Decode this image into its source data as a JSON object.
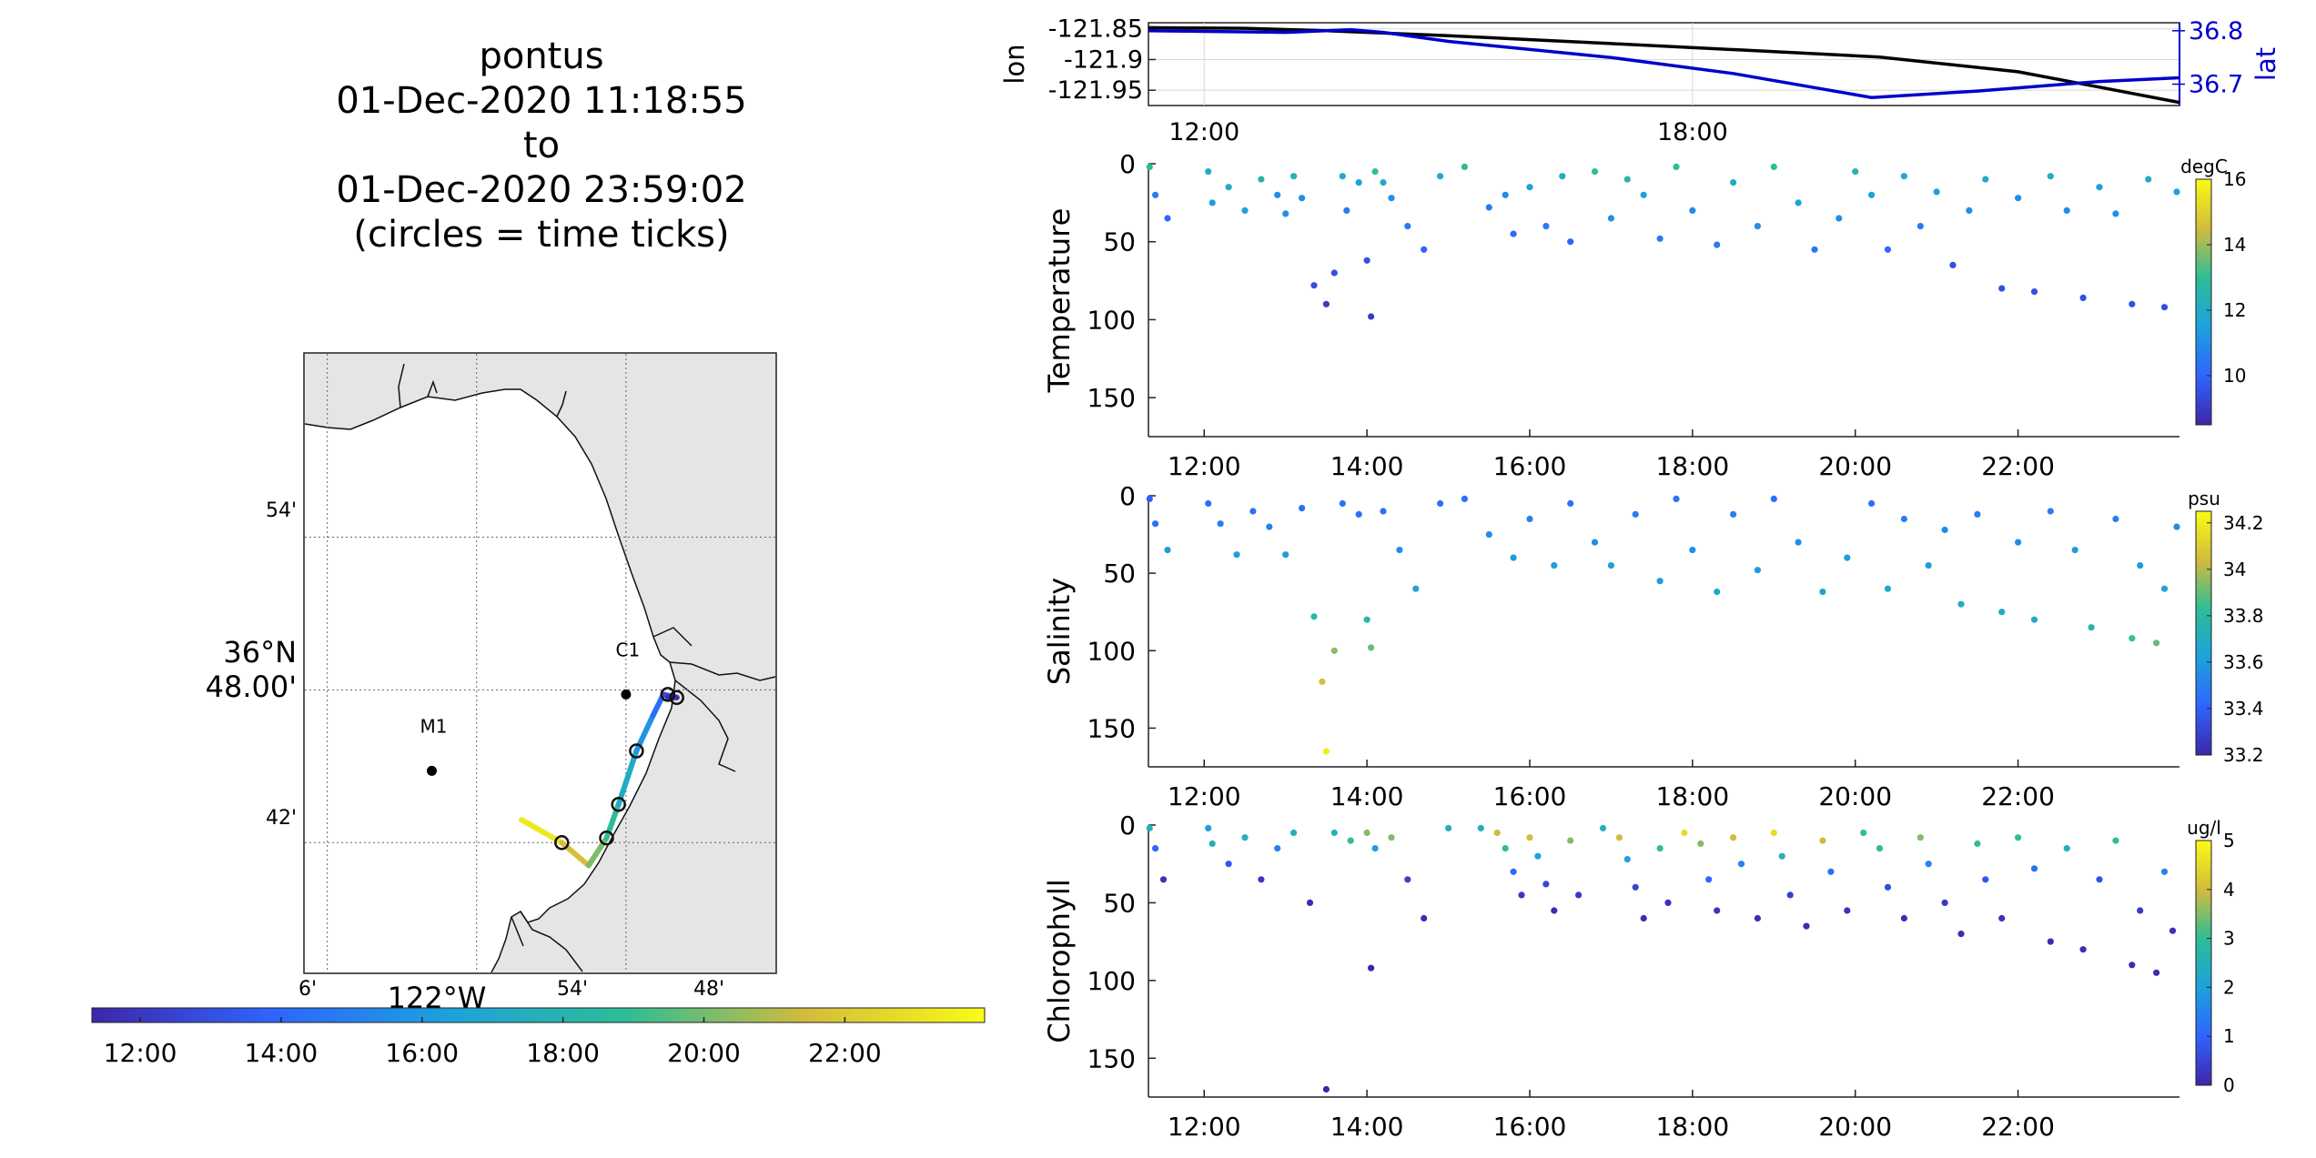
{
  "title_block": {
    "line1": "pontus",
    "line2": "01-Dec-2020 11:18:55",
    "line3": "to",
    "line4": "01-Dec-2020 23:59:02",
    "line5": "(circles = time ticks)"
  },
  "colors": {
    "lon_line": "#000000",
    "lat_line": "#0000cc",
    "coast": "#000000",
    "land": "#e5e5e5"
  },
  "chart_data": [
    {
      "type": "line",
      "id": "lonlat",
      "ylabel": "lon",
      "ylabel_right": "lat",
      "x_tick_labels": [
        "12:00",
        "18:00"
      ],
      "x_ticks_hours": [
        12,
        18
      ],
      "xlim_hours": [
        11.315,
        23.984
      ],
      "ylim_left": [
        -121.975,
        -121.84
      ],
      "ylim_right": [
        36.66,
        36.815
      ],
      "yticks_left": [
        -121.85,
        -121.9,
        -121.95
      ],
      "yticks_left_labels": [
        "-121.85",
        "-121.9",
        "-121.95"
      ],
      "yticks_right": [
        36.8,
        36.7
      ],
      "yticks_right_labels": [
        "36.8",
        "36.7"
      ],
      "grid": true,
      "series": [
        {
          "axis": "left",
          "x": [
            11.315,
            12.5,
            13.5,
            15.0,
            17.0,
            19.0,
            20.3,
            22.0,
            23.0,
            23.984
          ],
          "values": [
            -121.848,
            -121.849,
            -121.853,
            -121.861,
            -121.874,
            -121.887,
            -121.896,
            -121.92,
            -121.945,
            -121.97
          ]
        },
        {
          "axis": "right",
          "x": [
            11.315,
            13.0,
            13.5,
            13.8,
            14.2,
            15.0,
            17.0,
            18.5,
            20.2,
            21.5,
            23.0,
            23.984
          ],
          "values": [
            36.8,
            36.797,
            36.8,
            36.802,
            36.797,
            36.78,
            36.75,
            36.72,
            36.675,
            36.687,
            36.705,
            36.712
          ]
        }
      ]
    },
    {
      "type": "scatter",
      "id": "temperature",
      "ylabel": "Temperature",
      "units": "degC",
      "x_tick_labels": [
        "12:00",
        "14:00",
        "16:00",
        "18:00",
        "20:00",
        "22:00"
      ],
      "x_ticks_hours": [
        12,
        14,
        16,
        18,
        20,
        22
      ],
      "xlim_hours": [
        11.315,
        23.984
      ],
      "ylim": [
        175,
        0
      ],
      "yticks": [
        0,
        50,
        100,
        150
      ],
      "colorbar_range": [
        8.5,
        16
      ],
      "colorbar_ticks": [
        10,
        12,
        14,
        16
      ],
      "points": [
        [
          11.33,
          2,
          13
        ],
        [
          11.4,
          20,
          10.5
        ],
        [
          11.55,
          35,
          10
        ],
        [
          12.05,
          5,
          12
        ],
        [
          12.1,
          25,
          11.5
        ],
        [
          12.3,
          15,
          12
        ],
        [
          12.5,
          30,
          11.5
        ],
        [
          12.7,
          10,
          12.5
        ],
        [
          12.9,
          20,
          11
        ],
        [
          13.0,
          32,
          11
        ],
        [
          13.1,
          8,
          12.5
        ],
        [
          13.2,
          22,
          11
        ],
        [
          13.35,
          78,
          9.5
        ],
        [
          13.5,
          90,
          9
        ],
        [
          13.6,
          70,
          9.5
        ],
        [
          13.7,
          8,
          12
        ],
        [
          13.75,
          30,
          10.5
        ],
        [
          13.9,
          12,
          11.5
        ],
        [
          14.0,
          62,
          9.5
        ],
        [
          14.05,
          98,
          9
        ],
        [
          14.1,
          5,
          13
        ],
        [
          14.2,
          12,
          12
        ],
        [
          14.3,
          22,
          11
        ],
        [
          14.5,
          40,
          10.5
        ],
        [
          14.7,
          55,
          10
        ],
        [
          14.9,
          8,
          12
        ],
        [
          15.2,
          2,
          13
        ],
        [
          15.5,
          28,
          10.5
        ],
        [
          15.7,
          20,
          11
        ],
        [
          15.8,
          45,
          10
        ],
        [
          16.0,
          15,
          11.5
        ],
        [
          16.2,
          40,
          10.5
        ],
        [
          16.4,
          8,
          12
        ],
        [
          16.5,
          50,
          10
        ],
        [
          16.8,
          5,
          13
        ],
        [
          17.0,
          35,
          11
        ],
        [
          17.2,
          10,
          12.5
        ],
        [
          17.4,
          20,
          11.5
        ],
        [
          17.6,
          48,
          10.5
        ],
        [
          17.8,
          2,
          13
        ],
        [
          18.0,
          30,
          11
        ],
        [
          18.3,
          52,
          10.5
        ],
        [
          18.5,
          12,
          12
        ],
        [
          18.8,
          40,
          11
        ],
        [
          19.0,
          2,
          13
        ],
        [
          19.3,
          25,
          11.5
        ],
        [
          19.5,
          55,
          10.5
        ],
        [
          19.8,
          35,
          11
        ],
        [
          20.0,
          5,
          12.5
        ],
        [
          20.2,
          20,
          11.5
        ],
        [
          20.4,
          55,
          10
        ],
        [
          20.6,
          8,
          12
        ],
        [
          20.8,
          40,
          10.5
        ],
        [
          21.0,
          18,
          11.5
        ],
        [
          21.2,
          65,
          9.5
        ],
        [
          21.4,
          30,
          11
        ],
        [
          21.6,
          10,
          12
        ],
        [
          21.8,
          80,
          9.5
        ],
        [
          22.0,
          22,
          11
        ],
        [
          22.2,
          82,
          9.5
        ],
        [
          22.4,
          8,
          12
        ],
        [
          22.6,
          30,
          11
        ],
        [
          22.8,
          86,
          9.5
        ],
        [
          23.0,
          15,
          11.5
        ],
        [
          23.2,
          32,
          11
        ],
        [
          23.4,
          90,
          9.5
        ],
        [
          23.6,
          10,
          12
        ],
        [
          23.8,
          92,
          9.5
        ],
        [
          23.95,
          18,
          11.5
        ]
      ]
    },
    {
      "type": "scatter",
      "id": "salinity",
      "ylabel": "Salinity",
      "units": "psu",
      "x_tick_labels": [
        "12:00",
        "14:00",
        "16:00",
        "18:00",
        "20:00",
        "22:00"
      ],
      "x_ticks_hours": [
        12,
        14,
        16,
        18,
        20,
        22
      ],
      "xlim_hours": [
        11.315,
        23.984
      ],
      "ylim": [
        175,
        0
      ],
      "yticks": [
        0,
        50,
        100,
        150
      ],
      "colorbar_range": [
        33.2,
        34.25
      ],
      "colorbar_ticks": [
        33.2,
        33.4,
        33.6,
        33.8,
        34,
        34.2
      ],
      "points": [
        [
          11.33,
          2,
          33.4
        ],
        [
          11.4,
          18,
          33.45
        ],
        [
          11.55,
          35,
          33.6
        ],
        [
          12.05,
          5,
          33.45
        ],
        [
          12.2,
          18,
          33.5
        ],
        [
          12.4,
          38,
          33.6
        ],
        [
          12.6,
          10,
          33.45
        ],
        [
          12.8,
          20,
          33.5
        ],
        [
          13.0,
          38,
          33.6
        ],
        [
          13.2,
          8,
          33.45
        ],
        [
          13.35,
          78,
          33.8
        ],
        [
          13.45,
          120,
          34.05
        ],
        [
          13.5,
          165,
          34.2
        ],
        [
          13.6,
          100,
          33.95
        ],
        [
          13.7,
          5,
          33.45
        ],
        [
          13.9,
          12,
          33.45
        ],
        [
          14.0,
          80,
          33.8
        ],
        [
          14.05,
          98,
          33.9
        ],
        [
          14.2,
          10,
          33.45
        ],
        [
          14.4,
          35,
          33.55
        ],
        [
          14.6,
          60,
          33.65
        ],
        [
          14.9,
          5,
          33.45
        ],
        [
          15.2,
          2,
          33.45
        ],
        [
          15.5,
          25,
          33.55
        ],
        [
          15.8,
          40,
          33.6
        ],
        [
          16.0,
          15,
          33.5
        ],
        [
          16.3,
          45,
          33.6
        ],
        [
          16.5,
          5,
          33.45
        ],
        [
          16.8,
          30,
          33.55
        ],
        [
          17.0,
          45,
          33.6
        ],
        [
          17.3,
          12,
          33.5
        ],
        [
          17.6,
          55,
          33.6
        ],
        [
          17.8,
          2,
          33.45
        ],
        [
          18.0,
          35,
          33.55
        ],
        [
          18.3,
          62,
          33.65
        ],
        [
          18.5,
          12,
          33.5
        ],
        [
          18.8,
          48,
          33.6
        ],
        [
          19.0,
          2,
          33.45
        ],
        [
          19.3,
          30,
          33.55
        ],
        [
          19.6,
          62,
          33.65
        ],
        [
          19.9,
          40,
          33.6
        ],
        [
          20.2,
          5,
          33.45
        ],
        [
          20.4,
          60,
          33.65
        ],
        [
          20.6,
          15,
          33.5
        ],
        [
          20.9,
          45,
          33.6
        ],
        [
          21.1,
          22,
          33.55
        ],
        [
          21.3,
          70,
          33.7
        ],
        [
          21.5,
          12,
          33.5
        ],
        [
          21.8,
          75,
          33.7
        ],
        [
          22.0,
          30,
          33.55
        ],
        [
          22.2,
          80,
          33.7
        ],
        [
          22.4,
          10,
          33.5
        ],
        [
          22.7,
          35,
          33.6
        ],
        [
          22.9,
          85,
          33.75
        ],
        [
          23.2,
          15,
          33.5
        ],
        [
          23.4,
          92,
          33.85
        ],
        [
          23.5,
          45,
          33.6
        ],
        [
          23.7,
          95,
          33.9
        ],
        [
          23.8,
          60,
          33.65
        ],
        [
          23.95,
          20,
          33.55
        ]
      ]
    },
    {
      "type": "scatter",
      "id": "chlorophyll",
      "ylabel": "Chlorophyll",
      "units": "ug/l",
      "x_tick_labels": [
        "12:00",
        "14:00",
        "16:00",
        "18:00",
        "20:00",
        "22:00"
      ],
      "x_ticks_hours": [
        12,
        14,
        16,
        18,
        20,
        22
      ],
      "xlim_hours": [
        11.315,
        23.984
      ],
      "ylim": [
        175,
        0
      ],
      "yticks": [
        0,
        50,
        100,
        150
      ],
      "colorbar_range": [
        0,
        5
      ],
      "colorbar_ticks": [
        0,
        1,
        2,
        3,
        4,
        5
      ],
      "points": [
        [
          11.33,
          2,
          2.5
        ],
        [
          11.4,
          15,
          1
        ],
        [
          11.5,
          35,
          0.2
        ],
        [
          12.05,
          2,
          2
        ],
        [
          12.1,
          12,
          2.5
        ],
        [
          12.3,
          25,
          0.8
        ],
        [
          12.5,
          8,
          2.5
        ],
        [
          12.7,
          35,
          0.3
        ],
        [
          12.9,
          15,
          1.5
        ],
        [
          13.1,
          5,
          2.5
        ],
        [
          13.3,
          50,
          0.1
        ],
        [
          13.5,
          170,
          0
        ],
        [
          13.6,
          5,
          2.5
        ],
        [
          13.8,
          10,
          3
        ],
        [
          14.0,
          5,
          3.5
        ],
        [
          14.05,
          92,
          0
        ],
        [
          14.1,
          15,
          2
        ],
        [
          14.3,
          8,
          3.5
        ],
        [
          14.5,
          35,
          0.4
        ],
        [
          14.7,
          60,
          0.1
        ],
        [
          15.0,
          2,
          2.5
        ],
        [
          15.4,
          2,
          2.5
        ],
        [
          15.6,
          5,
          4
        ],
        [
          15.7,
          15,
          3
        ],
        [
          15.8,
          30,
          1
        ],
        [
          15.9,
          45,
          0.3
        ],
        [
          16.0,
          8,
          4
        ],
        [
          16.1,
          20,
          2
        ],
        [
          16.2,
          38,
          0.5
        ],
        [
          16.3,
          55,
          0.1
        ],
        [
          16.5,
          10,
          3.5
        ],
        [
          16.6,
          45,
          0.3
        ],
        [
          16.9,
          2,
          2.5
        ],
        [
          17.1,
          8,
          4
        ],
        [
          17.2,
          22,
          2
        ],
        [
          17.3,
          40,
          0.5
        ],
        [
          17.4,
          60,
          0.1
        ],
        [
          17.6,
          15,
          3
        ],
        [
          17.7,
          50,
          0.2
        ],
        [
          17.9,
          5,
          4.5
        ],
        [
          18.1,
          12,
          3.5
        ],
        [
          18.2,
          35,
          1
        ],
        [
          18.3,
          55,
          0.2
        ],
        [
          18.5,
          8,
          4
        ],
        [
          18.6,
          25,
          1.5
        ],
        [
          18.8,
          60,
          0.1
        ],
        [
          19.0,
          5,
          4.5
        ],
        [
          19.1,
          20,
          2.5
        ],
        [
          19.2,
          45,
          0.4
        ],
        [
          19.4,
          65,
          0.1
        ],
        [
          19.6,
          10,
          4
        ],
        [
          19.7,
          30,
          1.2
        ],
        [
          19.9,
          55,
          0.2
        ],
        [
          20.1,
          5,
          3
        ],
        [
          20.3,
          15,
          3
        ],
        [
          20.4,
          40,
          0.6
        ],
        [
          20.6,
          60,
          0.1
        ],
        [
          20.8,
          8,
          3.5
        ],
        [
          20.9,
          25,
          1.5
        ],
        [
          21.1,
          50,
          0.3
        ],
        [
          21.3,
          70,
          0.1
        ],
        [
          21.5,
          12,
          3
        ],
        [
          21.6,
          35,
          0.8
        ],
        [
          21.8,
          60,
          0.2
        ],
        [
          22.0,
          8,
          3
        ],
        [
          22.2,
          28,
          1.2
        ],
        [
          22.4,
          75,
          0.1
        ],
        [
          22.6,
          15,
          2.5
        ],
        [
          22.8,
          80,
          0.1
        ],
        [
          23.0,
          35,
          0.7
        ],
        [
          23.2,
          10,
          3
        ],
        [
          23.4,
          90,
          0.1
        ],
        [
          23.5,
          55,
          0.3
        ],
        [
          23.7,
          95,
          0.1
        ],
        [
          23.8,
          30,
          1.5
        ],
        [
          23.9,
          68,
          0.2
        ]
      ]
    },
    {
      "type": "scatter",
      "id": "map",
      "title": "",
      "lat_tick_labels": [
        "54'",
        "36°N 48.00'",
        "42'"
      ],
      "lon_tick_labels": [
        "6'",
        "54'",
        "48'"
      ],
      "lon_main_label": "122°W",
      "stations": [
        {
          "name": "M1",
          "lon": -122.03,
          "lat": 36.747
        },
        {
          "name": "C1",
          "lon": -121.9,
          "lat": 36.797
        }
      ],
      "track": {
        "lon": [
          -121.97,
          -121.943,
          -121.925,
          -121.913,
          -121.905,
          -121.893,
          -121.882,
          -121.875,
          -121.866,
          -121.872
        ],
        "lat": [
          36.715,
          36.7,
          36.685,
          36.703,
          36.725,
          36.76,
          36.783,
          36.797,
          36.795,
          36.795
        ],
        "hours": [
          23.98,
          22.5,
          20.8,
          19.5,
          18.0,
          16.5,
          15.0,
          13.5,
          12.0,
          11.32
        ]
      },
      "time_circles": {
        "lon": [
          -121.943,
          -121.913,
          -121.905,
          -121.893,
          -121.872,
          -121.866
        ],
        "lat": [
          36.7,
          36.703,
          36.725,
          36.76,
          36.797,
          36.795
        ]
      },
      "colorbar_tick_labels": [
        "12:00",
        "14:00",
        "16:00",
        "18:00",
        "20:00",
        "22:00"
      ],
      "colorbar_ticks_hours": [
        12,
        14,
        16,
        18,
        20,
        22
      ],
      "colorbar_range_hours": [
        11.315,
        23.984
      ]
    }
  ]
}
